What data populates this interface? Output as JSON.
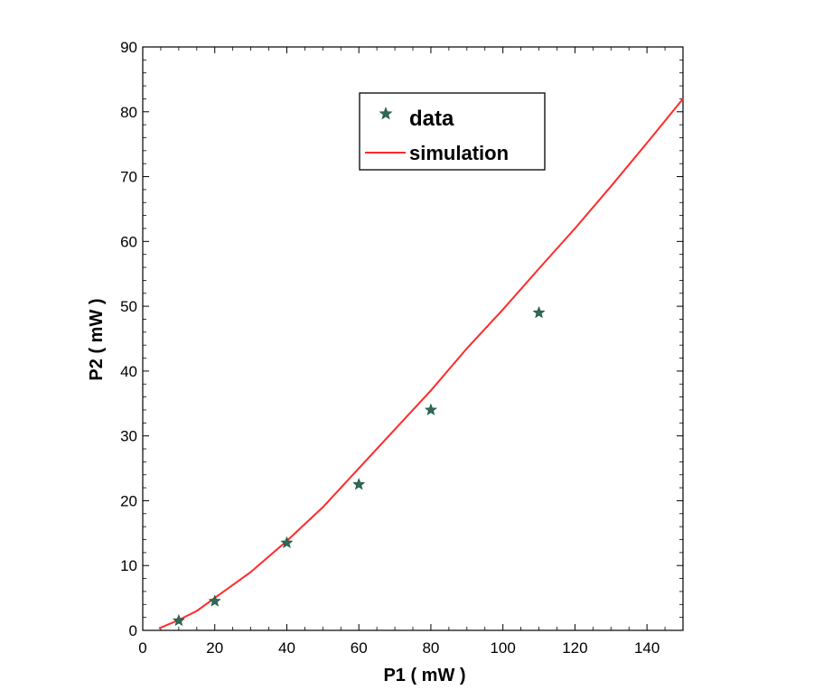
{
  "chart_data": {
    "type": "scatter",
    "xlabel": "P1 ( mW )",
    "ylabel": "P2 ( mW )",
    "xlim": [
      0,
      150
    ],
    "ylim": [
      0,
      90
    ],
    "xticks": [
      0,
      20,
      40,
      60,
      80,
      100,
      120,
      140
    ],
    "yticks": [
      0,
      10,
      20,
      30,
      40,
      50,
      60,
      70,
      80,
      90
    ],
    "grid": false,
    "legend": {
      "placement": "top-center",
      "entries": [
        "data",
        "simulation"
      ]
    },
    "series": [
      {
        "name": "data",
        "type": "scatter",
        "marker": "star",
        "color": "#2f6a55",
        "x": [
          10,
          20,
          40,
          60,
          80,
          110
        ],
        "y": [
          1.5,
          4.5,
          13.5,
          22.5,
          34,
          49
        ]
      },
      {
        "name": "simulation",
        "type": "line",
        "color": "#ff2a2a",
        "x": [
          4.5,
          10,
          15,
          20,
          30,
          40,
          50,
          60,
          70,
          80,
          90,
          100,
          110,
          120,
          130,
          140,
          150
        ],
        "y": [
          0.3,
          1.6,
          3.0,
          5.0,
          9.0,
          13.8,
          19.0,
          25.0,
          31.0,
          37.0,
          43.5,
          49.5,
          55.8,
          62.0,
          68.5,
          75.2,
          82.0
        ]
      }
    ]
  }
}
